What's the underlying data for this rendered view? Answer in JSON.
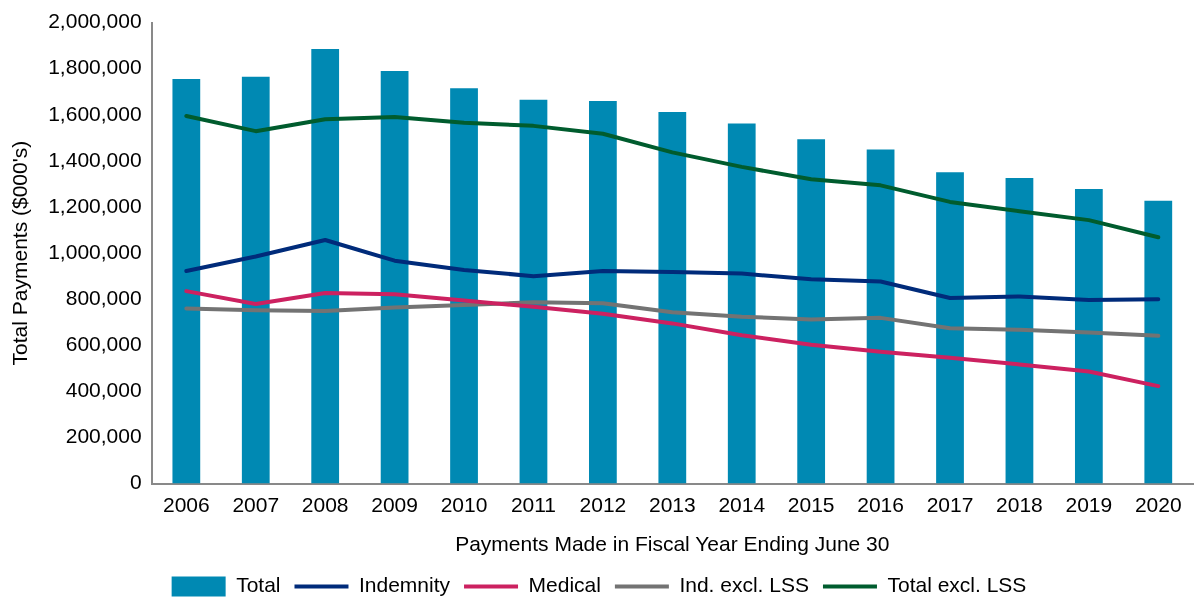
{
  "chart_data": {
    "type": "bar",
    "xlabel": "Payments Made in Fiscal Year Ending June 30",
    "ylabel": "Total Payments ($000's)",
    "categories": [
      "2006",
      "2007",
      "2008",
      "2009",
      "2010",
      "2011",
      "2012",
      "2013",
      "2014",
      "2015",
      "2016",
      "2017",
      "2018",
      "2019",
      "2020"
    ],
    "ylim": [
      0,
      2000000
    ],
    "yticks": [
      {
        "value": 0,
        "label": "0"
      },
      {
        "value": 200000,
        "label": "200,000"
      },
      {
        "value": 400000,
        "label": "400,000"
      },
      {
        "value": 600000,
        "label": "600,000"
      },
      {
        "value": 800000,
        "label": "800,000"
      },
      {
        "value": 1000000,
        "label": "1,000,000"
      },
      {
        "value": 1200000,
        "label": "1,200,000"
      },
      {
        "value": 1400000,
        "label": "1,400,000"
      },
      {
        "value": 1600000,
        "label": "1,600,000"
      },
      {
        "value": 1800000,
        "label": "1,800,000"
      },
      {
        "value": 2000000,
        "label": "2,000,000"
      }
    ],
    "grid": false,
    "legend": "bottom",
    "series": [
      {
        "name": "Total",
        "color": "#0089b3",
        "values": [
          1755000,
          1765000,
          1885000,
          1790000,
          1715000,
          1665000,
          1660000,
          1612000,
          1562000,
          1494000,
          1449000,
          1351000,
          1326000,
          1278000,
          1227000
        ]
      },
      {
        "name": "Indemnity",
        "type": "line",
        "color": "#002b7a",
        "values": [
          922000,
          985000,
          1057000,
          967000,
          927000,
          900000,
          922000,
          918000,
          911000,
          887000,
          877000,
          805000,
          812000,
          797000,
          800000
        ]
      },
      {
        "name": "Medical",
        "type": "line",
        "color": "#cc2160",
        "values": [
          835000,
          779000,
          827000,
          821000,
          794000,
          767000,
          737000,
          695000,
          644000,
          602000,
          572000,
          546000,
          517000,
          486000,
          423000
        ]
      },
      {
        "name": "Ind. excl. LSS",
        "type": "line",
        "color": "#737373",
        "values": [
          760000,
          752000,
          749000,
          764000,
          775000,
          787000,
          782000,
          743000,
          724000,
          712000,
          719000,
          674000,
          667000,
          656000,
          641000
        ]
      },
      {
        "name": "Total excl. LSS",
        "type": "line",
        "color": "#005c2e",
        "values": [
          1595000,
          1529000,
          1581000,
          1590000,
          1565000,
          1552000,
          1518000,
          1437000,
          1374000,
          1320000,
          1294000,
          1222000,
          1182000,
          1143000,
          1069000
        ]
      }
    ]
  }
}
